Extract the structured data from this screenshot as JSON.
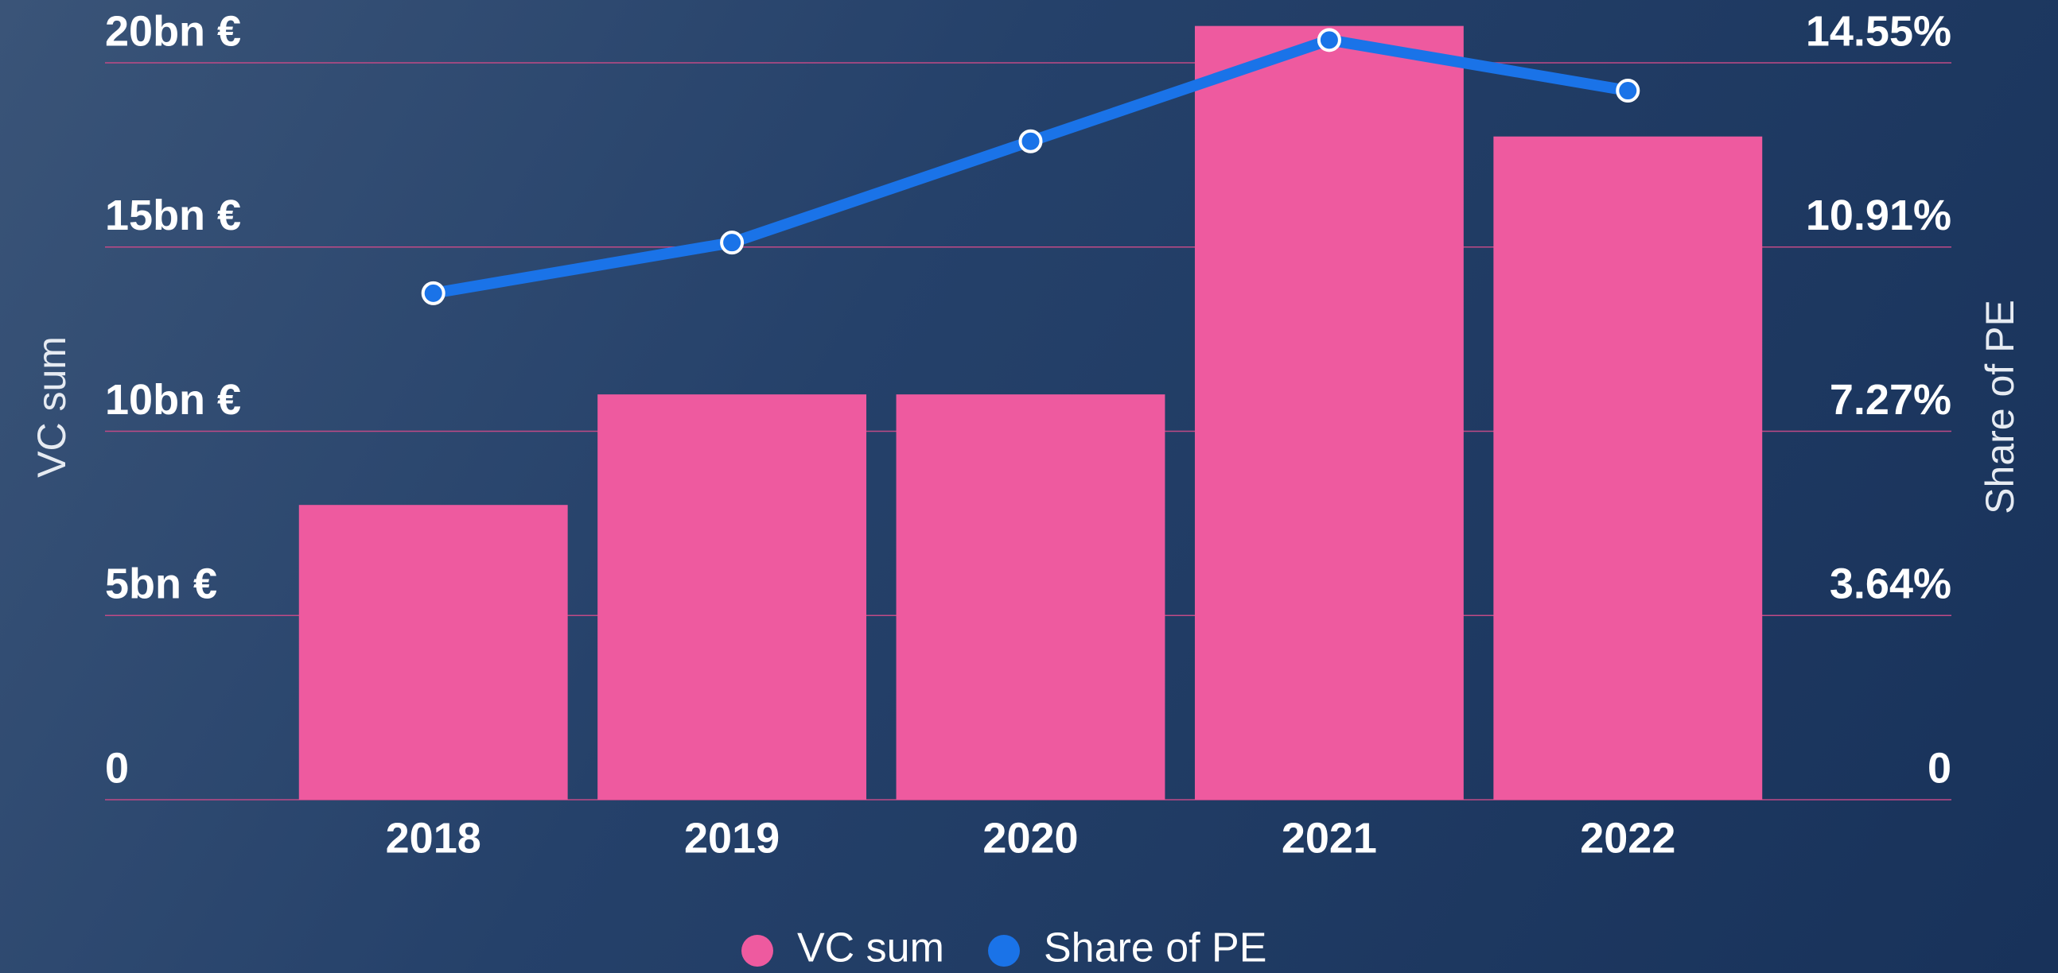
{
  "chart_data": {
    "type": "bar",
    "categories": [
      "2018",
      "2019",
      "2020",
      "2021",
      "2022"
    ],
    "series": [
      {
        "name": "VC sum",
        "color": "#ee5a9f",
        "values": [
          8,
          11,
          11,
          21,
          18
        ]
      },
      {
        "name": "Share of PE",
        "color": "#1a73e8",
        "axis": "y2",
        "type": "line",
        "values": [
          10,
          11,
          13,
          15,
          14
        ]
      }
    ],
    "ylabel": "VC sum",
    "y2label": "Share of PE",
    "ylim": [
      0,
      20
    ],
    "yticks": [
      0,
      {
        "value": 5,
        "label": "5bn €"
      },
      {
        "value": 10,
        "label": "10bn €"
      },
      {
        "value": 15,
        "label": "15bn €"
      },
      {
        "value": 20,
        "label": "20bn €"
      }
    ],
    "y2lim": [
      0,
      14.55
    ],
    "y2ticks": [
      0,
      {
        "value": 3.64,
        "label": "3.64%"
      },
      {
        "value": 7.27,
        "label": "7.27%"
      },
      {
        "value": 10.91,
        "label": "10.91%"
      },
      {
        "value": 14.55,
        "label": "14.55%"
      }
    ],
    "grid": true,
    "legend": "bottom"
  }
}
